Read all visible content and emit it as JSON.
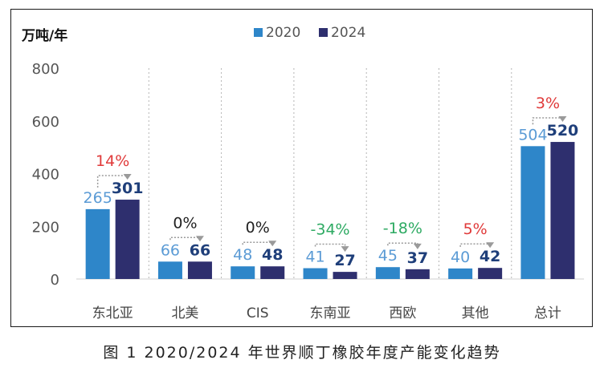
{
  "caption": "图 1 2020/2024 年世界顺丁橡胶年度产能变化趋势",
  "chart_data": {
    "type": "bar",
    "ylabel": "万吨/年",
    "ylim": [
      0,
      800
    ],
    "yticks": [
      0,
      200,
      400,
      600,
      800
    ],
    "grid": false,
    "legend_position": "top-center",
    "categories": [
      "东北亚",
      "北美",
      "CIS",
      "东南亚",
      "西欧",
      "其他",
      "总计"
    ],
    "series": [
      {
        "name": "2020",
        "color": "#2E86C9",
        "label_color": "#5B9BD5",
        "values": [
          265,
          66,
          48,
          41,
          45,
          40,
          504
        ]
      },
      {
        "name": "2024",
        "color": "#2E2F6E",
        "label_color": "#1F3F7A",
        "values": [
          301,
          66,
          48,
          27,
          37,
          42,
          520
        ]
      }
    ],
    "change_labels": [
      "14%",
      "0%",
      "0%",
      "-34%",
      "-18%",
      "5%",
      "3%"
    ],
    "change_colors": [
      "#E03A3A",
      "#222222",
      "#222222",
      "#2DAA62",
      "#2DAA62",
      "#E03A3A",
      "#E03A3A"
    ]
  }
}
